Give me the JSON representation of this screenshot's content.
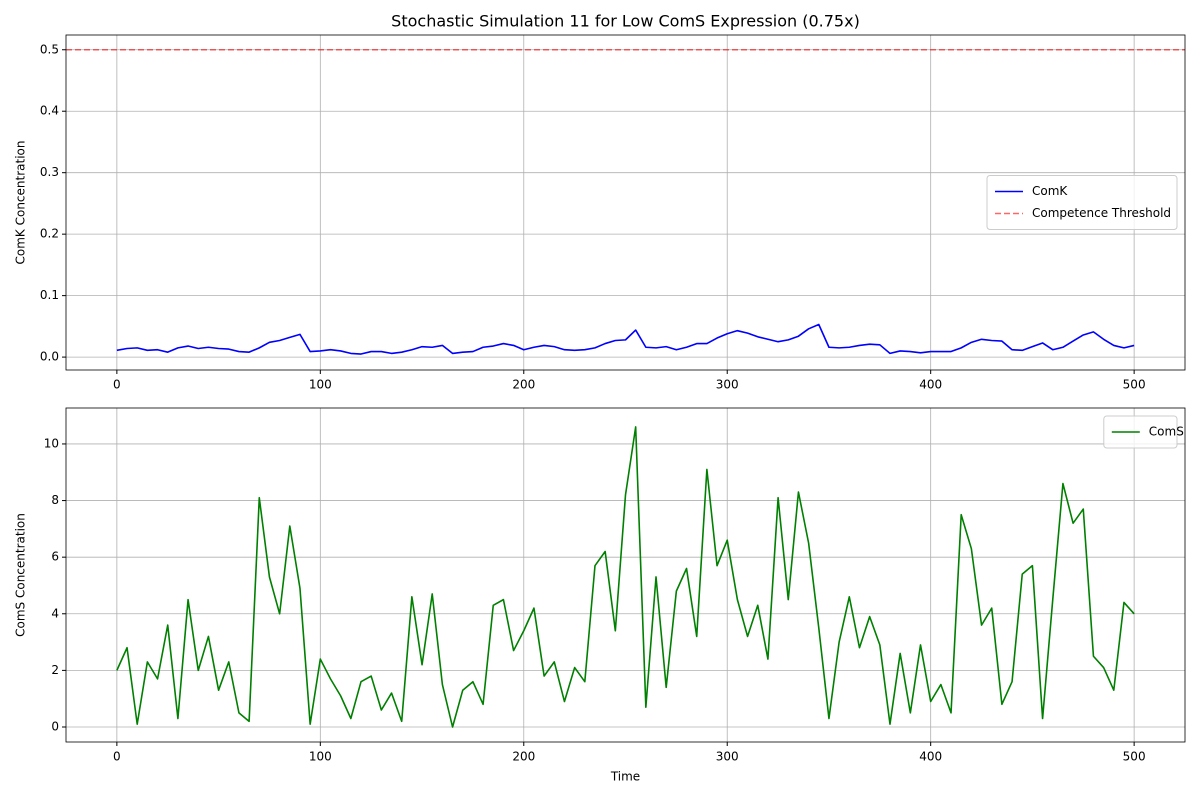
{
  "chart_data": [
    {
      "type": "line",
      "title": "Stochastic Simulation 11 for Low ComS Expression (0.75x)",
      "y_label": "ComK Concentration",
      "x": [
        0,
        5,
        10,
        15,
        20,
        25,
        30,
        35,
        40,
        45,
        50,
        55,
        60,
        65,
        70,
        75,
        80,
        85,
        90,
        95,
        100,
        105,
        110,
        115,
        120,
        125,
        130,
        135,
        140,
        145,
        150,
        155,
        160,
        165,
        170,
        175,
        180,
        185,
        190,
        195,
        200,
        205,
        210,
        215,
        220,
        225,
        230,
        235,
        240,
        245,
        250,
        255,
        260,
        265,
        270,
        275,
        280,
        285,
        290,
        295,
        300,
        305,
        310,
        315,
        320,
        325,
        330,
        335,
        340,
        345,
        350,
        355,
        360,
        365,
        370,
        375,
        380,
        385,
        390,
        395,
        400,
        405,
        410,
        415,
        420,
        425,
        430,
        435,
        440,
        445,
        450,
        455,
        460,
        465,
        470,
        475,
        480,
        485,
        490,
        495,
        500
      ],
      "series": [
        {
          "name": "ComK",
          "color": "#0000ff",
          "values": [
            0.011,
            0.014,
            0.015,
            0.011,
            0.012,
            0.008,
            0.015,
            0.018,
            0.014,
            0.016,
            0.014,
            0.013,
            0.009,
            0.008,
            0.015,
            0.024,
            0.027,
            0.032,
            0.037,
            0.009,
            0.01,
            0.012,
            0.01,
            0.006,
            0.005,
            0.009,
            0.009,
            0.006,
            0.008,
            0.012,
            0.017,
            0.016,
            0.019,
            0.006,
            0.008,
            0.009,
            0.016,
            0.018,
            0.022,
            0.019,
            0.012,
            0.016,
            0.019,
            0.017,
            0.012,
            0.011,
            0.012,
            0.015,
            0.022,
            0.027,
            0.028,
            0.044,
            0.016,
            0.015,
            0.017,
            0.012,
            0.016,
            0.022,
            0.022,
            0.031,
            0.038,
            0.043,
            0.039,
            0.033,
            0.029,
            0.025,
            0.028,
            0.034,
            0.046,
            0.053,
            0.016,
            0.015,
            0.016,
            0.019,
            0.021,
            0.02,
            0.006,
            0.01,
            0.009,
            0.007,
            0.009,
            0.009,
            0.009,
            0.015,
            0.024,
            0.029,
            0.027,
            0.026,
            0.012,
            0.011,
            0.017,
            0.023,
            0.012,
            0.016,
            0.026,
            0.036,
            0.041,
            0.029,
            0.019,
            0.015,
            0.019
          ]
        }
      ],
      "hlines": [
        {
          "name": "Competence Threshold",
          "y": 0.5,
          "color": "#ff0000",
          "style": "dashed"
        }
      ],
      "xlim": [
        -25,
        525
      ],
      "xticks": [
        0,
        100,
        200,
        300,
        400,
        500
      ],
      "ylim": [
        -0.021,
        0.524
      ],
      "yticks": [
        {
          "value": 0,
          "label": "0.0"
        },
        0.1,
        0.2,
        0.3,
        0.4,
        0.5
      ],
      "grid": true,
      "legend": "center right"
    },
    {
      "type": "line",
      "x_label": "Time",
      "y_label": "ComS Concentration",
      "x": [
        0,
        5,
        10,
        15,
        20,
        25,
        30,
        35,
        40,
        45,
        50,
        55,
        60,
        65,
        70,
        75,
        80,
        85,
        90,
        95,
        100,
        105,
        110,
        115,
        120,
        125,
        130,
        135,
        140,
        145,
        150,
        155,
        160,
        165,
        170,
        175,
        180,
        185,
        190,
        195,
        200,
        205,
        210,
        215,
        220,
        225,
        230,
        235,
        240,
        245,
        250,
        255,
        260,
        265,
        270,
        275,
        280,
        285,
        290,
        295,
        300,
        305,
        310,
        315,
        320,
        325,
        330,
        335,
        340,
        345,
        350,
        355,
        360,
        365,
        370,
        375,
        380,
        385,
        390,
        395,
        400,
        405,
        410,
        415,
        420,
        425,
        430,
        435,
        440,
        445,
        450,
        455,
        460,
        465,
        470,
        475,
        480,
        485,
        490,
        495,
        500
      ],
      "series": [
        {
          "name": "ComS",
          "color": "#008000",
          "values": [
            2.0,
            2.8,
            0.1,
            2.3,
            1.7,
            3.6,
            0.3,
            4.5,
            2.0,
            3.2,
            1.3,
            2.3,
            0.5,
            0.2,
            8.1,
            5.3,
            4.0,
            7.1,
            4.9,
            0.1,
            2.4,
            1.7,
            1.1,
            0.3,
            1.6,
            1.8,
            0.6,
            1.2,
            0.2,
            4.6,
            2.2,
            4.7,
            1.5,
            0.0,
            1.3,
            1.6,
            0.8,
            4.3,
            4.5,
            2.7,
            3.4,
            4.2,
            1.8,
            2.3,
            0.9,
            2.1,
            1.6,
            5.7,
            6.2,
            3.4,
            8.2,
            10.6,
            0.7,
            5.3,
            1.4,
            4.8,
            5.6,
            3.2,
            9.1,
            5.7,
            6.6,
            4.5,
            3.2,
            4.3,
            2.4,
            8.1,
            4.5,
            8.3,
            6.5,
            3.5,
            0.3,
            3.0,
            4.6,
            2.8,
            3.9,
            2.9,
            0.1,
            2.6,
            0.5,
            2.9,
            0.9,
            1.5,
            0.5,
            7.5,
            6.3,
            3.6,
            4.2,
            0.8,
            1.6,
            5.4,
            5.7,
            0.3,
            4.5,
            8.6,
            7.2,
            7.7,
            2.5,
            2.1,
            1.3,
            4.4,
            4.0
          ]
        }
      ],
      "hlines": [],
      "xlim": [
        -25,
        525
      ],
      "xticks": [
        0,
        100,
        200,
        300,
        400,
        500
      ],
      "ylim": [
        -0.53,
        11.27
      ],
      "yticks": [
        0,
        2,
        4,
        6,
        8,
        10
      ],
      "grid": true,
      "legend": "upper right"
    }
  ]
}
